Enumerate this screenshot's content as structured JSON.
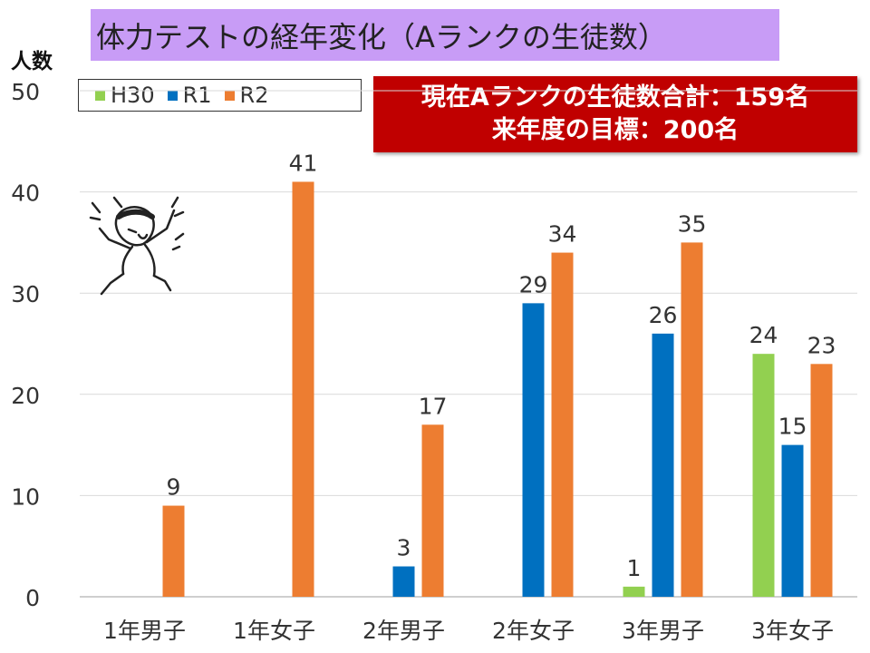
{
  "header": {
    "title": "体力テストの経年変化（Aランクの生徒数）",
    "y_unit": "人数"
  },
  "summary": {
    "line1": "現在Aランクの生徒数合計：159名",
    "line2": "来年度の目標：200名"
  },
  "colors": {
    "H30": "#92d050",
    "R1": "#0070c0",
    "R2": "#ed7d31",
    "title_bg": "#c89cf6",
    "summary_bg": "#c00000"
  },
  "mascot": {
    "icon": "cheering-character-icon"
  },
  "chart_data": {
    "type": "bar",
    "title": "体力テストの経年変化（Aランクの生徒数）",
    "ylabel": "人数",
    "xlabel": "",
    "ylim": [
      0,
      50
    ],
    "yticks": [
      0,
      10,
      20,
      30,
      40,
      50
    ],
    "grid": true,
    "legend": "top-left",
    "categories": [
      "1年男子",
      "1年女子",
      "2年男子",
      "2年女子",
      "3年男子",
      "3年女子"
    ],
    "series": [
      {
        "name": "H30",
        "color": "#92d050",
        "values": [
          null,
          null,
          null,
          null,
          1,
          24
        ]
      },
      {
        "name": "R1",
        "color": "#0070c0",
        "values": [
          null,
          null,
          3,
          29,
          26,
          15
        ]
      },
      {
        "name": "R2",
        "color": "#ed7d31",
        "values": [
          9,
          41,
          17,
          34,
          35,
          23
        ]
      }
    ]
  }
}
